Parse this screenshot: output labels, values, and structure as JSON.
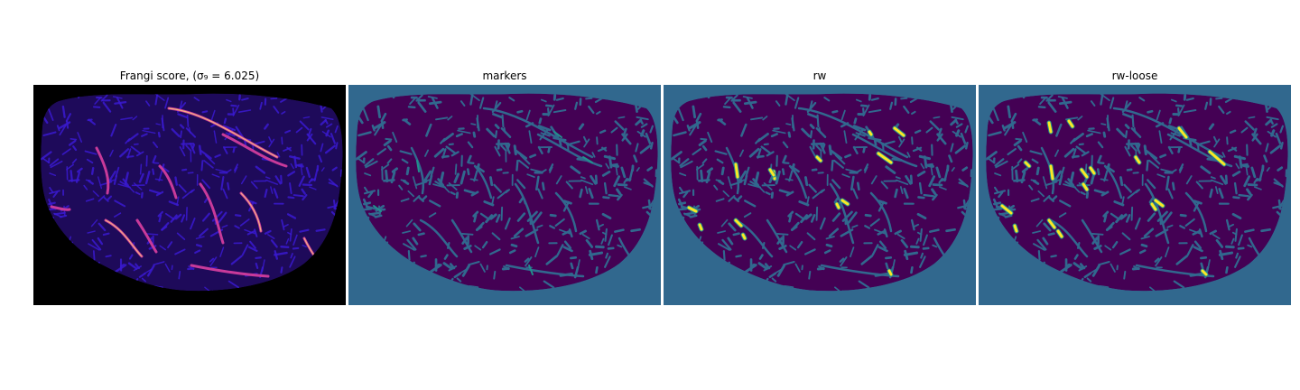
{
  "figure": {
    "panels": [
      {
        "title": "Frangi score, (σ₉ = 6.025)",
        "kind": "frangi-heatmap",
        "colormap": "magma"
      },
      {
        "title": "markers",
        "kind": "label-map",
        "colormap": "viridis"
      },
      {
        "title": "rw",
        "kind": "label-map",
        "colormap": "viridis"
      },
      {
        "title": "rw-loose",
        "kind": "label-map",
        "colormap": "viridis"
      }
    ]
  },
  "colors": {
    "frangi_background": "#000000",
    "frangi_tissue": "#1e0a5a",
    "frangi_ridge": "#3a1ad0",
    "frangi_strong": "#c83a9a",
    "frangi_peak": "#ffd27a",
    "label_background": "#31688e",
    "label_tissue": "#440154",
    "label_vessel_edge": "#21918c",
    "label_vessel": "#fde725"
  }
}
